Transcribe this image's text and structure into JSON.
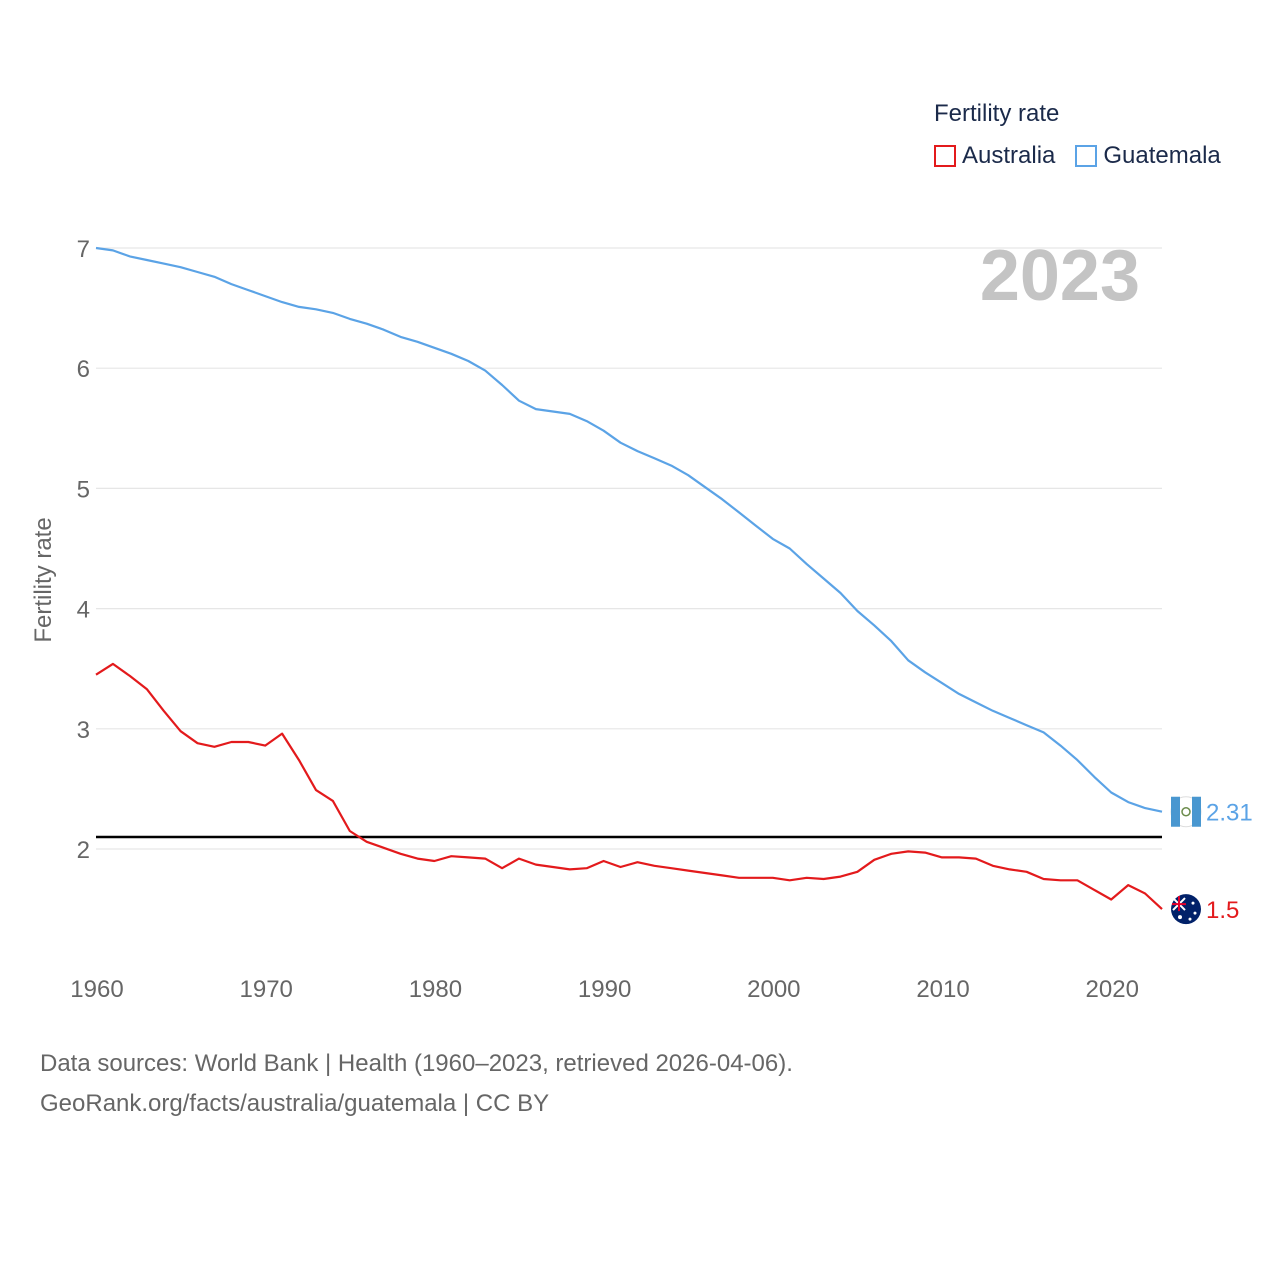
{
  "legend": {
    "title": "Fertility rate",
    "items": [
      {
        "label": "Australia",
        "color": "#e31a1c"
      },
      {
        "label": "Guatemala",
        "color": "#5ba3e6"
      }
    ]
  },
  "sources": {
    "line1": "Data sources: World Bank | Health (1960–2023, retrieved 2026-04-06).",
    "line2": "GeoRank.org/facts/australia/guatemala | CC BY"
  },
  "chart_data": {
    "type": "line",
    "ylabel": "Fertility rate",
    "xlim": [
      1960,
      2023
    ],
    "ylim": [
      1.5,
      7
    ],
    "yticks": [
      2,
      3,
      4,
      5,
      6,
      7
    ],
    "xticks": [
      1960,
      1970,
      1980,
      1990,
      2000,
      2010,
      2020
    ],
    "year_label": "2023",
    "reference_line": {
      "value": 2.1,
      "color": "#000000"
    },
    "grid": true,
    "legend_position": "top-right",
    "x": [
      1960,
      1961,
      1962,
      1963,
      1964,
      1965,
      1966,
      1967,
      1968,
      1969,
      1970,
      1971,
      1972,
      1973,
      1974,
      1975,
      1976,
      1977,
      1978,
      1979,
      1980,
      1981,
      1982,
      1983,
      1984,
      1985,
      1986,
      1987,
      1988,
      1989,
      1990,
      1991,
      1992,
      1993,
      1994,
      1995,
      1996,
      1997,
      1998,
      1999,
      2000,
      2001,
      2002,
      2003,
      2004,
      2005,
      2006,
      2007,
      2008,
      2009,
      2010,
      2011,
      2012,
      2013,
      2014,
      2015,
      2016,
      2017,
      2018,
      2019,
      2020,
      2021,
      2022,
      2023
    ],
    "series": [
      {
        "name": "Guatemala",
        "color": "#5ba3e6",
        "end_label": "2.31",
        "values": [
          7.0,
          6.98,
          6.93,
          6.9,
          6.87,
          6.84,
          6.8,
          6.76,
          6.7,
          6.65,
          6.6,
          6.55,
          6.51,
          6.49,
          6.46,
          6.41,
          6.37,
          6.32,
          6.26,
          6.22,
          6.17,
          6.12,
          6.06,
          5.98,
          5.86,
          5.73,
          5.66,
          5.64,
          5.62,
          5.56,
          5.48,
          5.38,
          5.31,
          5.25,
          5.19,
          5.11,
          5.01,
          4.91,
          4.8,
          4.69,
          4.58,
          4.5,
          4.37,
          4.25,
          4.13,
          3.98,
          3.86,
          3.73,
          3.57,
          3.47,
          3.38,
          3.29,
          3.22,
          3.15,
          3.09,
          3.03,
          2.97,
          2.86,
          2.74,
          2.6,
          2.47,
          2.39,
          2.34,
          2.31
        ]
      },
      {
        "name": "Australia",
        "color": "#e31a1c",
        "end_label": "1.5",
        "values": [
          3.45,
          3.54,
          3.44,
          3.33,
          3.15,
          2.98,
          2.88,
          2.85,
          2.89,
          2.89,
          2.86,
          2.96,
          2.74,
          2.49,
          2.4,
          2.15,
          2.06,
          2.01,
          1.96,
          1.92,
          1.9,
          1.94,
          1.93,
          1.92,
          1.84,
          1.92,
          1.87,
          1.85,
          1.83,
          1.84,
          1.9,
          1.85,
          1.89,
          1.86,
          1.84,
          1.82,
          1.8,
          1.78,
          1.76,
          1.76,
          1.76,
          1.74,
          1.76,
          1.75,
          1.77,
          1.81,
          1.91,
          1.96,
          1.98,
          1.97,
          1.93,
          1.93,
          1.92,
          1.86,
          1.83,
          1.81,
          1.75,
          1.74,
          1.74,
          1.66,
          1.58,
          1.7,
          1.63,
          1.5
        ]
      }
    ]
  }
}
